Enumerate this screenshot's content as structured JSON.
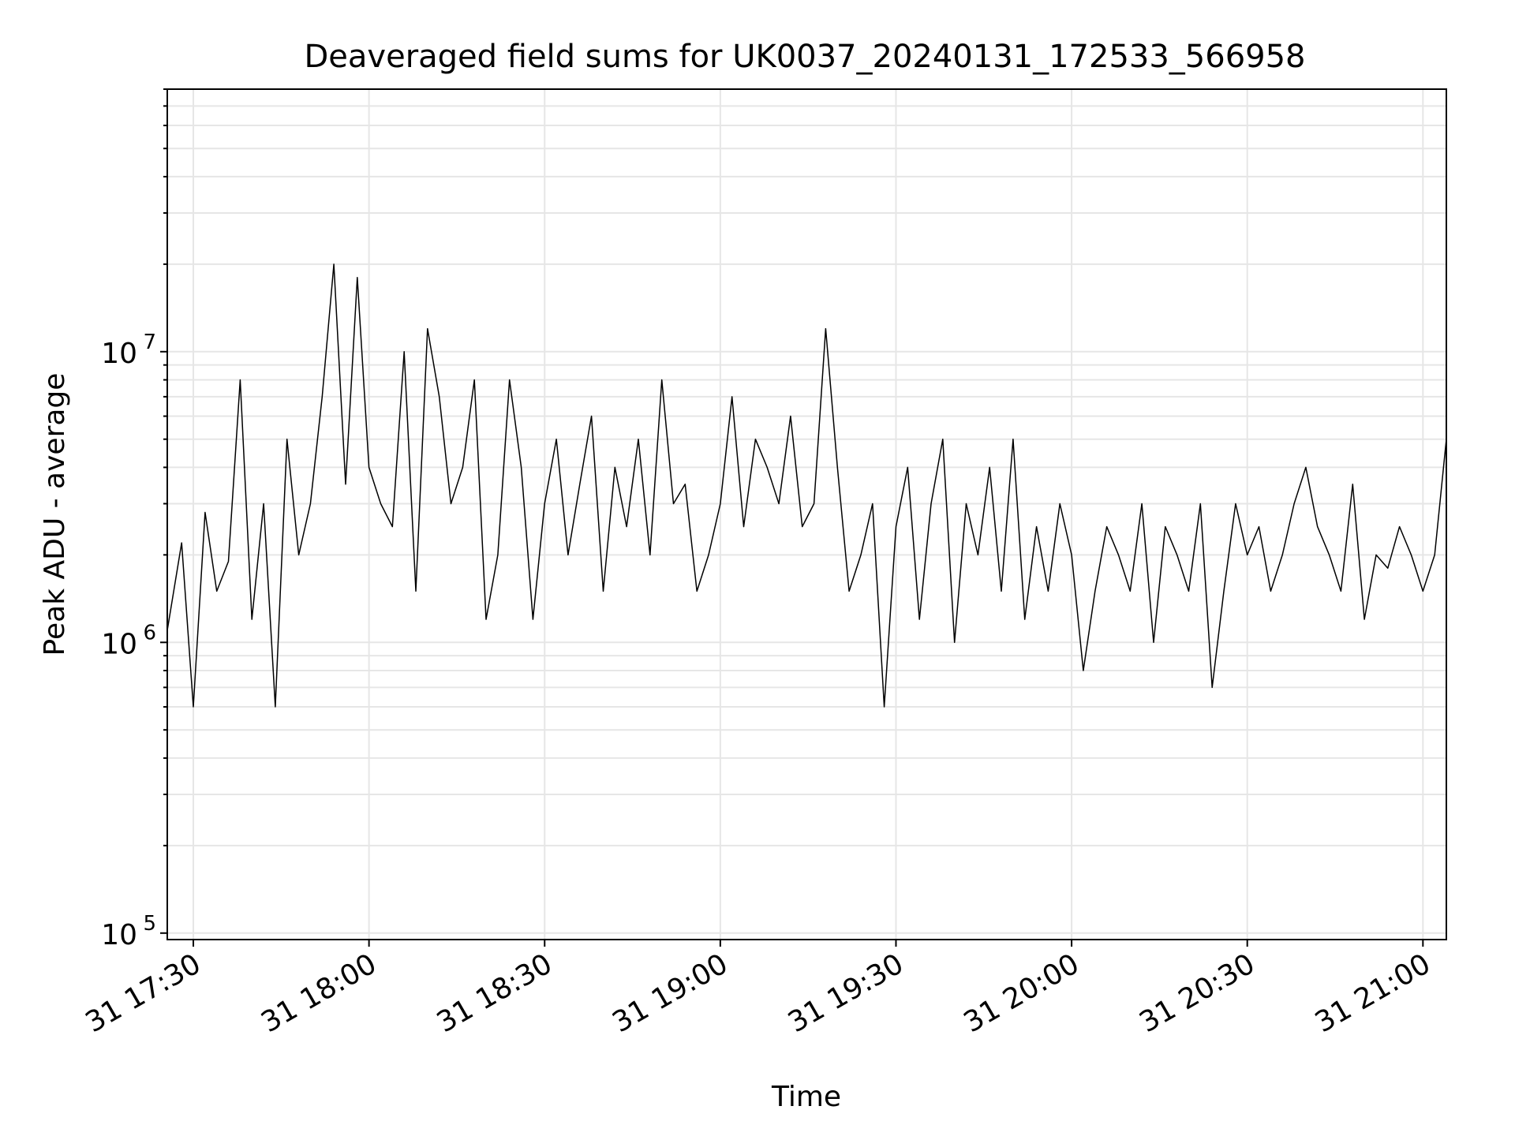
{
  "chart_data": {
    "type": "line",
    "title": "Deaveraged field sums for UK0037_20240131_172533_566958",
    "xlabel": "Time",
    "ylabel": "Peak ADU - average",
    "x_range": [
      "2024-01-31T17:25:33",
      "2024-01-31T21:04:00"
    ],
    "yscale": "log",
    "ylim": [
      95000,
      80000000
    ],
    "grid": true,
    "line_color": "#000000",
    "grid_color": "#e6e6e6",
    "x_ticks": [
      {
        "t": "2024-01-31T17:30",
        "label": "31 17:30"
      },
      {
        "t": "2024-01-31T18:00",
        "label": "31 18:00"
      },
      {
        "t": "2024-01-31T18:30",
        "label": "31 18:30"
      },
      {
        "t": "2024-01-31T19:00",
        "label": "31 19:00"
      },
      {
        "t": "2024-01-31T19:30",
        "label": "31 19:30"
      },
      {
        "t": "2024-01-31T20:00",
        "label": "31 20:00"
      },
      {
        "t": "2024-01-31T20:30",
        "label": "31 20:30"
      },
      {
        "t": "2024-01-31T21:00",
        "label": "31 21:00"
      }
    ],
    "y_ticks": [
      {
        "value": 100000,
        "base": "10",
        "exp": "5"
      },
      {
        "value": 1000000,
        "base": "10",
        "exp": "6"
      },
      {
        "value": 10000000,
        "base": "10",
        "exp": "7"
      }
    ],
    "series": [
      {
        "x": [
          "2024-01-31T17:25:33",
          "2024-01-31T17:28:00",
          "2024-01-31T17:30:00",
          "2024-01-31T17:32:00",
          "2024-01-31T17:34:00",
          "2024-01-31T17:36:00",
          "2024-01-31T17:38:00",
          "2024-01-31T17:40:00",
          "2024-01-31T17:42:00",
          "2024-01-31T17:44:00",
          "2024-01-31T17:46:00",
          "2024-01-31T17:48:00",
          "2024-01-31T17:50:00",
          "2024-01-31T17:52:00",
          "2024-01-31T17:54:00",
          "2024-01-31T17:56:00",
          "2024-01-31T17:58:00",
          "2024-01-31T18:00:00",
          "2024-01-31T18:02:00",
          "2024-01-31T18:04:00",
          "2024-01-31T18:06:00",
          "2024-01-31T18:08:00",
          "2024-01-31T18:10:00",
          "2024-01-31T18:12:00",
          "2024-01-31T18:14:00",
          "2024-01-31T18:16:00",
          "2024-01-31T18:18:00",
          "2024-01-31T18:20:00",
          "2024-01-31T18:22:00",
          "2024-01-31T18:24:00",
          "2024-01-31T18:26:00",
          "2024-01-31T18:28:00",
          "2024-01-31T18:30:00",
          "2024-01-31T18:32:00",
          "2024-01-31T18:34:00",
          "2024-01-31T18:36:00",
          "2024-01-31T18:38:00",
          "2024-01-31T18:40:00",
          "2024-01-31T18:42:00",
          "2024-01-31T18:44:00",
          "2024-01-31T18:46:00",
          "2024-01-31T18:48:00",
          "2024-01-31T18:50:00",
          "2024-01-31T18:52:00",
          "2024-01-31T18:54:00",
          "2024-01-31T18:56:00",
          "2024-01-31T18:58:00",
          "2024-01-31T19:00:00",
          "2024-01-31T19:02:00",
          "2024-01-31T19:04:00",
          "2024-01-31T19:06:00",
          "2024-01-31T19:08:00",
          "2024-01-31T19:10:00",
          "2024-01-31T19:12:00",
          "2024-01-31T19:14:00",
          "2024-01-31T19:16:00",
          "2024-01-31T19:18:00",
          "2024-01-31T19:20:00",
          "2024-01-31T19:22:00",
          "2024-01-31T19:24:00",
          "2024-01-31T19:26:00",
          "2024-01-31T19:28:00",
          "2024-01-31T19:30:00",
          "2024-01-31T19:32:00",
          "2024-01-31T19:34:00",
          "2024-01-31T19:36:00",
          "2024-01-31T19:38:00",
          "2024-01-31T19:40:00",
          "2024-01-31T19:42:00",
          "2024-01-31T19:44:00",
          "2024-01-31T19:46:00",
          "2024-01-31T19:48:00",
          "2024-01-31T19:50:00",
          "2024-01-31T19:52:00",
          "2024-01-31T19:54:00",
          "2024-01-31T19:56:00",
          "2024-01-31T19:58:00",
          "2024-01-31T20:00:00",
          "2024-01-31T20:02:00",
          "2024-01-31T20:04:00",
          "2024-01-31T20:06:00",
          "2024-01-31T20:08:00",
          "2024-01-31T20:10:00",
          "2024-01-31T20:12:00",
          "2024-01-31T20:14:00",
          "2024-01-31T20:16:00",
          "2024-01-31T20:18:00",
          "2024-01-31T20:20:00",
          "2024-01-31T20:22:00",
          "2024-01-31T20:24:00",
          "2024-01-31T20:26:00",
          "2024-01-31T20:28:00",
          "2024-01-31T20:30:00",
          "2024-01-31T20:32:00",
          "2024-01-31T20:34:00",
          "2024-01-31T20:36:00",
          "2024-01-31T20:38:00",
          "2024-01-31T20:40:00",
          "2024-01-31T20:42:00",
          "2024-01-31T20:44:00",
          "2024-01-31T20:46:00",
          "2024-01-31T20:48:00",
          "2024-01-31T20:50:00",
          "2024-01-31T20:52:00",
          "2024-01-31T20:54:00",
          "2024-01-31T20:56:00",
          "2024-01-31T20:58:00",
          "2024-01-31T21:00:00",
          "2024-01-31T21:02:00",
          "2024-01-31T21:04:00"
        ],
        "y": [
          1100000,
          2200000,
          600000,
          2800000,
          1500000,
          1900000,
          8000000,
          1200000,
          3000000,
          600000,
          5000000,
          2000000,
          3000000,
          7000000,
          20000000,
          3500000,
          18000000,
          4000000,
          3000000,
          2500000,
          10000000,
          1500000,
          12000000,
          7000000,
          3000000,
          4000000,
          8000000,
          1200000,
          2000000,
          8000000,
          4000000,
          1200000,
          3000000,
          5000000,
          2000000,
          3500000,
          6000000,
          1500000,
          4000000,
          2500000,
          5000000,
          2000000,
          8000000,
          3000000,
          3500000,
          1500000,
          2000000,
          3000000,
          7000000,
          2500000,
          5000000,
          4000000,
          3000000,
          6000000,
          2500000,
          3000000,
          12000000,
          4000000,
          1500000,
          2000000,
          3000000,
          600000,
          2500000,
          4000000,
          1200000,
          3000000,
          5000000,
          1000000,
          3000000,
          2000000,
          4000000,
          1500000,
          5000000,
          1200000,
          2500000,
          1500000,
          3000000,
          2000000,
          800000,
          1500000,
          2500000,
          2000000,
          1500000,
          3000000,
          1000000,
          2500000,
          2000000,
          1500000,
          3000000,
          700000,
          1500000,
          3000000,
          2000000,
          2500000,
          1500000,
          2000000,
          3000000,
          4000000,
          2500000,
          2000000,
          1500000,
          3500000,
          1200000,
          2000000,
          1800000,
          2500000,
          2000000,
          1500000,
          2000000,
          5000000
        ],
        "color": "#000000"
      }
    ]
  }
}
